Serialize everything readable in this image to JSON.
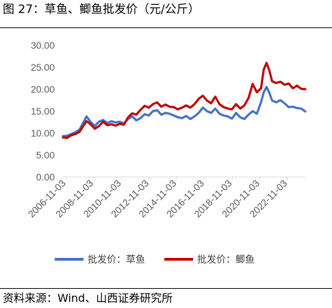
{
  "title": "图 27：草鱼、鲫鱼批发价（元/公斤）",
  "source": "资料来源：Wind、山西证券研究所",
  "chart_data": {
    "type": "line",
    "title": "",
    "xlabel": "",
    "ylabel": "",
    "ylim": [
      0,
      30
    ],
    "yticks": [
      "0.00",
      "5.00",
      "10.00",
      "15.00",
      "20.00",
      "25.00",
      "30.00"
    ],
    "xticks": [
      "2006-11-03",
      "2008-11-03",
      "2010-11-03",
      "2012-11-03",
      "2014-11-03",
      "2016-11-03",
      "2018-11-03",
      "2020-11-03",
      "2022-11-03"
    ],
    "xrange": [
      2006.6,
      2024.1
    ],
    "grid": false,
    "legend": "bottom",
    "series": [
      {
        "name": "批发价：草鱼",
        "color": "#4472C4",
        "points": [
          [
            2006.6,
            9.3
          ],
          [
            2006.9,
            9.4
          ],
          [
            2007.2,
            9.8
          ],
          [
            2007.5,
            10.2
          ],
          [
            2007.8,
            10.8
          ],
          [
            2008.0,
            12.0
          ],
          [
            2008.3,
            13.8
          ],
          [
            2008.6,
            12.5
          ],
          [
            2008.9,
            11.6
          ],
          [
            2009.2,
            12.6
          ],
          [
            2009.5,
            13.0
          ],
          [
            2009.8,
            12.3
          ],
          [
            2010.1,
            12.7
          ],
          [
            2010.4,
            12.4
          ],
          [
            2010.7,
            12.6
          ],
          [
            2011.0,
            12.2
          ],
          [
            2011.3,
            13.2
          ],
          [
            2011.6,
            13.8
          ],
          [
            2011.9,
            12.9
          ],
          [
            2012.2,
            13.4
          ],
          [
            2012.5,
            14.3
          ],
          [
            2012.8,
            14.0
          ],
          [
            2013.1,
            15.0
          ],
          [
            2013.4,
            15.2
          ],
          [
            2013.7,
            14.2
          ],
          [
            2014.0,
            14.6
          ],
          [
            2014.3,
            14.4
          ],
          [
            2014.6,
            14.0
          ],
          [
            2014.9,
            13.6
          ],
          [
            2015.2,
            13.4
          ],
          [
            2015.5,
            13.9
          ],
          [
            2015.8,
            13.2
          ],
          [
            2016.1,
            13.8
          ],
          [
            2016.4,
            14.6
          ],
          [
            2016.7,
            15.8
          ],
          [
            2017.0,
            15.0
          ],
          [
            2017.3,
            14.6
          ],
          [
            2017.6,
            15.6
          ],
          [
            2017.9,
            14.4
          ],
          [
            2018.2,
            14.0
          ],
          [
            2018.5,
            13.8
          ],
          [
            2018.8,
            13.3
          ],
          [
            2019.1,
            14.6
          ],
          [
            2019.4,
            13.6
          ],
          [
            2019.7,
            13.2
          ],
          [
            2020.0,
            14.2
          ],
          [
            2020.3,
            15.0
          ],
          [
            2020.6,
            14.4
          ],
          [
            2020.9,
            17.0
          ],
          [
            2021.1,
            19.3
          ],
          [
            2021.3,
            20.5
          ],
          [
            2021.5,
            19.2
          ],
          [
            2021.7,
            17.4
          ],
          [
            2022.0,
            17.0
          ],
          [
            2022.3,
            17.5
          ],
          [
            2022.6,
            16.8
          ],
          [
            2022.9,
            15.9
          ],
          [
            2023.2,
            16.0
          ],
          [
            2023.5,
            15.7
          ],
          [
            2023.8,
            15.6
          ],
          [
            2024.1,
            14.9
          ]
        ]
      },
      {
        "name": "批发价：鲫鱼",
        "color": "#C00000",
        "points": [
          [
            2006.6,
            9.0
          ],
          [
            2006.9,
            8.9
          ],
          [
            2007.2,
            9.5
          ],
          [
            2007.5,
            9.8
          ],
          [
            2007.8,
            10.3
          ],
          [
            2008.0,
            11.3
          ],
          [
            2008.3,
            12.7
          ],
          [
            2008.6,
            12.0
          ],
          [
            2008.9,
            11.0
          ],
          [
            2009.2,
            11.6
          ],
          [
            2009.5,
            12.6
          ],
          [
            2009.8,
            11.8
          ],
          [
            2010.1,
            12.0
          ],
          [
            2010.4,
            11.7
          ],
          [
            2010.7,
            12.1
          ],
          [
            2011.0,
            11.9
          ],
          [
            2011.3,
            13.6
          ],
          [
            2011.6,
            14.5
          ],
          [
            2011.9,
            14.2
          ],
          [
            2012.2,
            15.3
          ],
          [
            2012.5,
            16.2
          ],
          [
            2012.8,
            15.8
          ],
          [
            2013.1,
            16.6
          ],
          [
            2013.4,
            17.0
          ],
          [
            2013.7,
            16.0
          ],
          [
            2014.0,
            16.5
          ],
          [
            2014.3,
            16.0
          ],
          [
            2014.6,
            15.9
          ],
          [
            2014.9,
            15.4
          ],
          [
            2015.2,
            15.8
          ],
          [
            2015.5,
            16.3
          ],
          [
            2015.8,
            15.8
          ],
          [
            2016.1,
            16.6
          ],
          [
            2016.4,
            17.8
          ],
          [
            2016.7,
            18.5
          ],
          [
            2017.0,
            17.4
          ],
          [
            2017.3,
            16.8
          ],
          [
            2017.6,
            18.3
          ],
          [
            2017.9,
            16.6
          ],
          [
            2018.2,
            15.9
          ],
          [
            2018.5,
            15.6
          ],
          [
            2018.8,
            15.4
          ],
          [
            2019.1,
            16.6
          ],
          [
            2019.4,
            15.6
          ],
          [
            2019.7,
            16.3
          ],
          [
            2020.0,
            18.0
          ],
          [
            2020.3,
            21.2
          ],
          [
            2020.6,
            19.3
          ],
          [
            2020.9,
            20.2
          ],
          [
            2021.1,
            24.5
          ],
          [
            2021.3,
            26.0
          ],
          [
            2021.5,
            24.3
          ],
          [
            2021.7,
            21.8
          ],
          [
            2022.0,
            21.4
          ],
          [
            2022.3,
            21.7
          ],
          [
            2022.6,
            21.0
          ],
          [
            2022.9,
            21.3
          ],
          [
            2023.2,
            20.2
          ],
          [
            2023.5,
            20.8
          ],
          [
            2023.8,
            20.1
          ],
          [
            2024.1,
            20.0
          ]
        ]
      }
    ]
  }
}
